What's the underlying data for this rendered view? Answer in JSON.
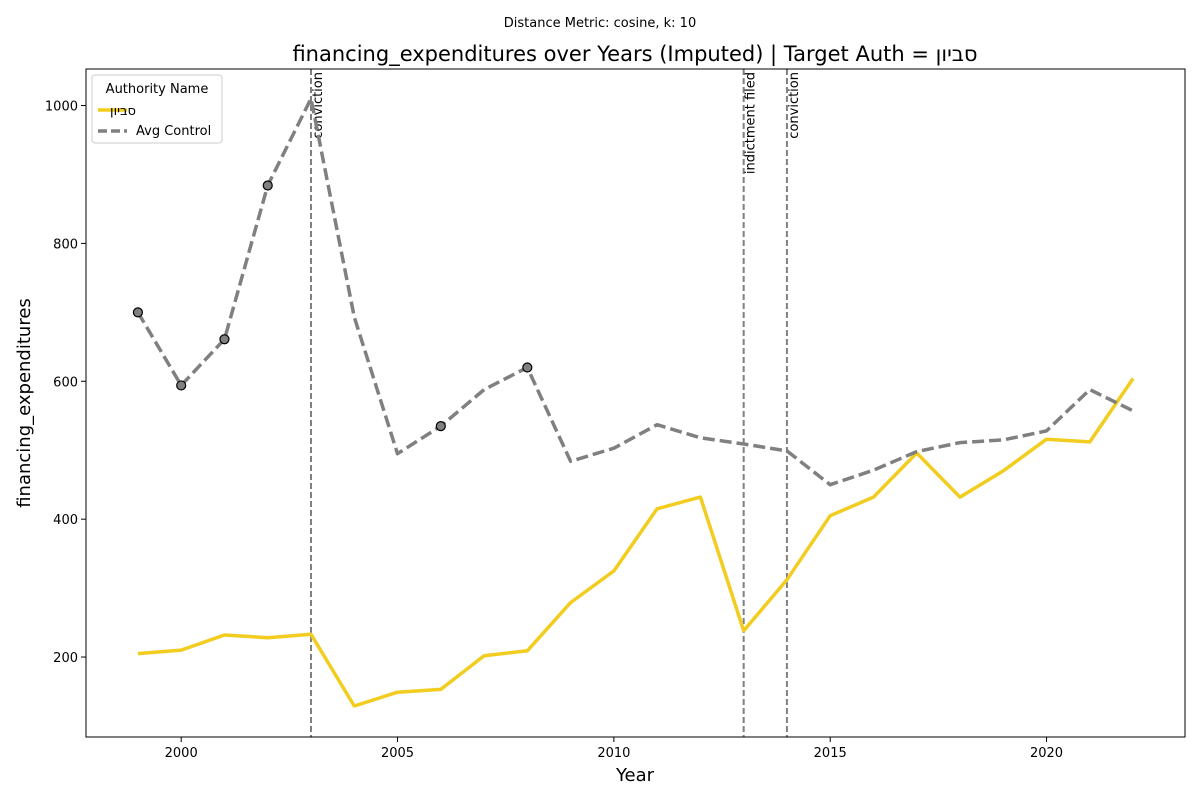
{
  "chart_data": {
    "type": "line",
    "subtitle": "Distance Metric: cosine, k: 10",
    "title": "financing_expenditures over Years (Imputed) | Target Auth = סביון",
    "xlabel": "Year",
    "ylabel": "financing_expenditures",
    "xlim": [
      1997.8,
      2023.2
    ],
    "ylim": [
      84,
      1053
    ],
    "xticks": [
      2000,
      2005,
      2010,
      2015,
      2020
    ],
    "yticks": [
      200,
      400,
      600,
      800,
      1000
    ],
    "grid": false,
    "legend": {
      "title": "Authority Name",
      "placement": "top-left"
    },
    "x": [
      1999,
      2000,
      2001,
      2002,
      2003,
      2004,
      2005,
      2006,
      2007,
      2008,
      2009,
      2010,
      2011,
      2012,
      2013,
      2014,
      2015,
      2016,
      2017,
      2018,
      2019,
      2020,
      2021,
      2022
    ],
    "series": [
      {
        "name": "סביון",
        "color": "#f2cd1f",
        "style": "solid",
        "values": [
          205,
          210,
          232,
          228,
          233,
          129,
          149,
          153,
          202,
          209,
          279,
          325,
          415,
          432,
          238,
          312,
          405,
          432,
          496,
          432,
          470,
          516,
          512,
          604
        ]
      },
      {
        "name": "Avg Control",
        "color": "#808080",
        "style": "dashed",
        "values": [
          700,
          594,
          661,
          884,
          1010,
          693,
          495,
          535,
          588,
          620,
          484,
          503,
          537,
          518,
          509,
          499,
          450,
          471,
          498,
          511,
          515,
          528,
          588,
          557
        ]
      }
    ],
    "imputed_markers": {
      "series": "Avg Control",
      "color": "#808080",
      "points": [
        {
          "x": 1999,
          "y": 700
        },
        {
          "x": 2000,
          "y": 594
        },
        {
          "x": 2001,
          "y": 661
        },
        {
          "x": 2002,
          "y": 884
        },
        {
          "x": 2006,
          "y": 535
        },
        {
          "x": 2008,
          "y": 620
        }
      ]
    },
    "events": [
      {
        "x": 2003,
        "label": "conviction"
      },
      {
        "x": 2013,
        "label": "indictment filed"
      },
      {
        "x": 2014,
        "label": "conviction"
      }
    ]
  }
}
